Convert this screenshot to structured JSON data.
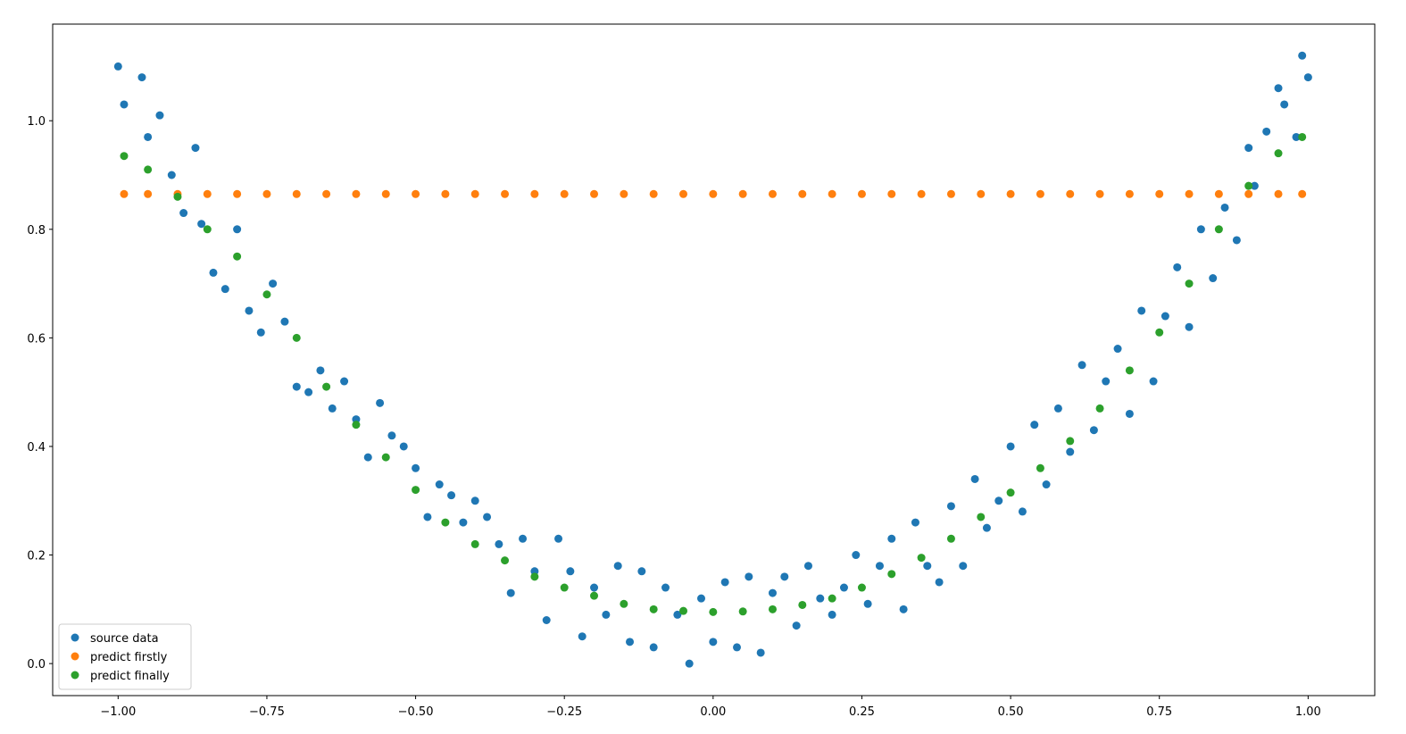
{
  "chart_data": {
    "type": "scatter",
    "xlim": [
      -1.11,
      1.112
    ],
    "ylim": [
      -0.059,
      1.178
    ],
    "xticks": [
      {
        "value": -1,
        "label": "−1.00"
      },
      {
        "value": -0.75,
        "label": "−0.75"
      },
      {
        "value": -0.5,
        "label": "−0.50"
      },
      {
        "value": -0.25,
        "label": "−0.25"
      },
      {
        "value": 0,
        "label": "0.00"
      },
      {
        "value": 0.25,
        "label": "0.25"
      },
      {
        "value": 0.5,
        "label": "0.50"
      },
      {
        "value": 0.75,
        "label": "0.75"
      },
      {
        "value": 1,
        "label": "1.00"
      }
    ],
    "yticks": [
      {
        "value": 0,
        "label": "0.0"
      },
      0.2,
      0.4,
      0.6,
      0.8,
      {
        "value": 1,
        "label": "1.0"
      }
    ],
    "legend": "lower left",
    "series": [
      {
        "name": "source data",
        "color": "#1f77b4",
        "x": [
          -1.0,
          -0.99,
          -0.96,
          -0.95,
          -0.93,
          -0.91,
          -0.89,
          -0.87,
          -0.86,
          -0.84,
          -0.82,
          -0.8,
          -0.78,
          -0.76,
          -0.74,
          -0.72,
          -0.7,
          -0.68,
          -0.66,
          -0.64,
          -0.62,
          -0.6,
          -0.58,
          -0.56,
          -0.54,
          -0.52,
          -0.5,
          -0.48,
          -0.46,
          -0.44,
          -0.42,
          -0.4,
          -0.38,
          -0.36,
          -0.34,
          -0.32,
          -0.3,
          -0.28,
          -0.26,
          -0.24,
          -0.22,
          -0.2,
          -0.18,
          -0.16,
          -0.14,
          -0.12,
          -0.1,
          -0.08,
          -0.06,
          -0.04,
          -0.02,
          0.0,
          0.02,
          0.04,
          0.06,
          0.08,
          0.1,
          0.12,
          0.14,
          0.16,
          0.18,
          0.2,
          0.22,
          0.24,
          0.26,
          0.28,
          0.3,
          0.32,
          0.34,
          0.36,
          0.38,
          0.4,
          0.42,
          0.44,
          0.46,
          0.48,
          0.5,
          0.52,
          0.54,
          0.56,
          0.58,
          0.6,
          0.62,
          0.64,
          0.66,
          0.68,
          0.7,
          0.72,
          0.74,
          0.76,
          0.78,
          0.8,
          0.82,
          0.84,
          0.86,
          0.88,
          0.9,
          0.91,
          0.93,
          0.95,
          0.96,
          0.98,
          0.99,
          1.0
        ],
        "values": [
          1.1,
          1.03,
          1.08,
          0.97,
          1.01,
          0.9,
          0.83,
          0.95,
          0.81,
          0.72,
          0.69,
          0.8,
          0.65,
          0.61,
          0.7,
          0.63,
          0.51,
          0.5,
          0.54,
          0.47,
          0.52,
          0.45,
          0.38,
          0.48,
          0.42,
          0.4,
          0.36,
          0.27,
          0.33,
          0.31,
          0.26,
          0.3,
          0.27,
          0.22,
          0.13,
          0.23,
          0.17,
          0.08,
          0.23,
          0.17,
          0.05,
          0.14,
          0.09,
          0.18,
          0.04,
          0.17,
          0.03,
          0.14,
          0.09,
          0.0,
          0.12,
          0.04,
          0.15,
          0.03,
          0.16,
          0.02,
          0.13,
          0.16,
          0.07,
          0.18,
          0.12,
          0.09,
          0.14,
          0.2,
          0.11,
          0.18,
          0.23,
          0.1,
          0.26,
          0.18,
          0.15,
          0.29,
          0.18,
          0.34,
          0.25,
          0.3,
          0.4,
          0.28,
          0.44,
          0.33,
          0.47,
          0.39,
          0.55,
          0.43,
          0.52,
          0.58,
          0.46,
          0.65,
          0.52,
          0.64,
          0.73,
          0.62,
          0.8,
          0.71,
          0.84,
          0.78,
          0.95,
          0.88,
          0.98,
          1.06,
          1.03,
          0.97,
          1.12,
          1.08
        ]
      },
      {
        "name": "predict firstly",
        "color": "#ff7f0e",
        "x": [
          -0.99,
          -0.95,
          -0.9,
          -0.85,
          -0.8,
          -0.75,
          -0.7,
          -0.65,
          -0.6,
          -0.55,
          -0.5,
          -0.45,
          -0.4,
          -0.35,
          -0.3,
          -0.25,
          -0.2,
          -0.15,
          -0.1,
          -0.05,
          0.0,
          0.05,
          0.1,
          0.15,
          0.2,
          0.25,
          0.3,
          0.35,
          0.4,
          0.45,
          0.5,
          0.55,
          0.6,
          0.65,
          0.7,
          0.75,
          0.8,
          0.85,
          0.9,
          0.95,
          0.99
        ],
        "values": [
          0.865,
          0.865,
          0.865,
          0.865,
          0.865,
          0.865,
          0.865,
          0.865,
          0.865,
          0.865,
          0.865,
          0.865,
          0.865,
          0.865,
          0.865,
          0.865,
          0.865,
          0.865,
          0.865,
          0.865,
          0.865,
          0.865,
          0.865,
          0.865,
          0.865,
          0.865,
          0.865,
          0.865,
          0.865,
          0.865,
          0.865,
          0.865,
          0.865,
          0.865,
          0.865,
          0.865,
          0.865,
          0.865,
          0.865,
          0.865,
          0.865
        ]
      },
      {
        "name": "predict finally",
        "color": "#2ca02c",
        "x": [
          -0.99,
          -0.95,
          -0.9,
          -0.85,
          -0.8,
          -0.75,
          -0.7,
          -0.65,
          -0.6,
          -0.55,
          -0.5,
          -0.45,
          -0.4,
          -0.35,
          -0.3,
          -0.25,
          -0.2,
          -0.15,
          -0.1,
          -0.05,
          0.0,
          0.05,
          0.1,
          0.15,
          0.2,
          0.25,
          0.3,
          0.35,
          0.4,
          0.45,
          0.5,
          0.55,
          0.6,
          0.65,
          0.7,
          0.75,
          0.8,
          0.85,
          0.9,
          0.95,
          0.99
        ],
        "values": [
          0.935,
          0.91,
          0.86,
          0.8,
          0.75,
          0.68,
          0.6,
          0.51,
          0.44,
          0.38,
          0.32,
          0.26,
          0.22,
          0.19,
          0.16,
          0.14,
          0.125,
          0.11,
          0.1,
          0.097,
          0.095,
          0.096,
          0.1,
          0.108,
          0.12,
          0.14,
          0.165,
          0.195,
          0.23,
          0.27,
          0.315,
          0.36,
          0.41,
          0.47,
          0.54,
          0.61,
          0.7,
          0.8,
          0.88,
          0.94,
          0.97
        ]
      }
    ]
  }
}
